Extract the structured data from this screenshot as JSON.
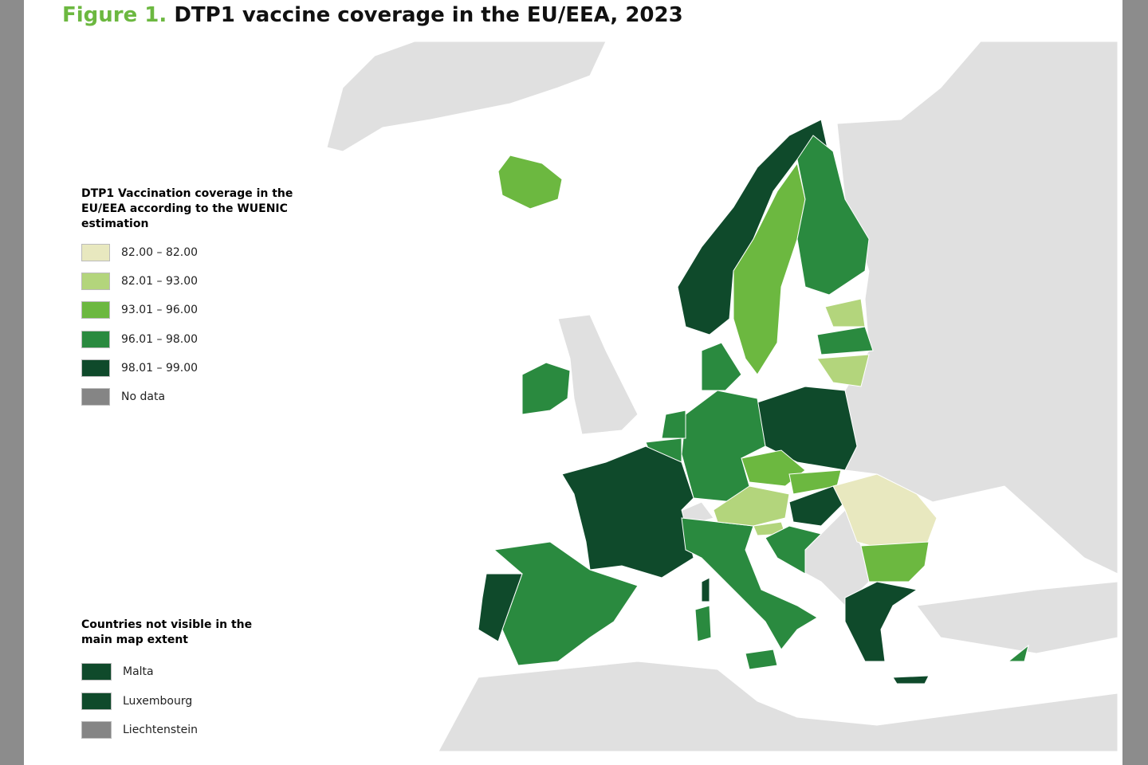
{
  "title": {
    "figure": "Figure 1.",
    "text": "DTP1 vaccine coverage in the EU/EEA, 2023"
  },
  "legend": {
    "title": "DTP1 Vaccination coverage in the EU/EEA according to the WUENIC estimation",
    "items": [
      {
        "label": "82.00 – 82.00",
        "color": "#e8e8bf"
      },
      {
        "label": "82.01 – 93.00",
        "color": "#b3d57c"
      },
      {
        "label": "93.01 – 96.00",
        "color": "#6cb840"
      },
      {
        "label": "96.01 – 98.00",
        "color": "#2a8a3f"
      },
      {
        "label": "98.01 – 99.00",
        "color": "#0f4a2b"
      },
      {
        "label": "No data",
        "color": "#858585"
      }
    ]
  },
  "small_countries": {
    "title": "Countries not visible in the main map extent",
    "items": [
      {
        "label": "Malta",
        "color": "#0f4a2b"
      },
      {
        "label": "Luxembourg",
        "color": "#0f4a2b"
      },
      {
        "label": "Liechtenstein",
        "color": "#858585"
      }
    ]
  }
}
